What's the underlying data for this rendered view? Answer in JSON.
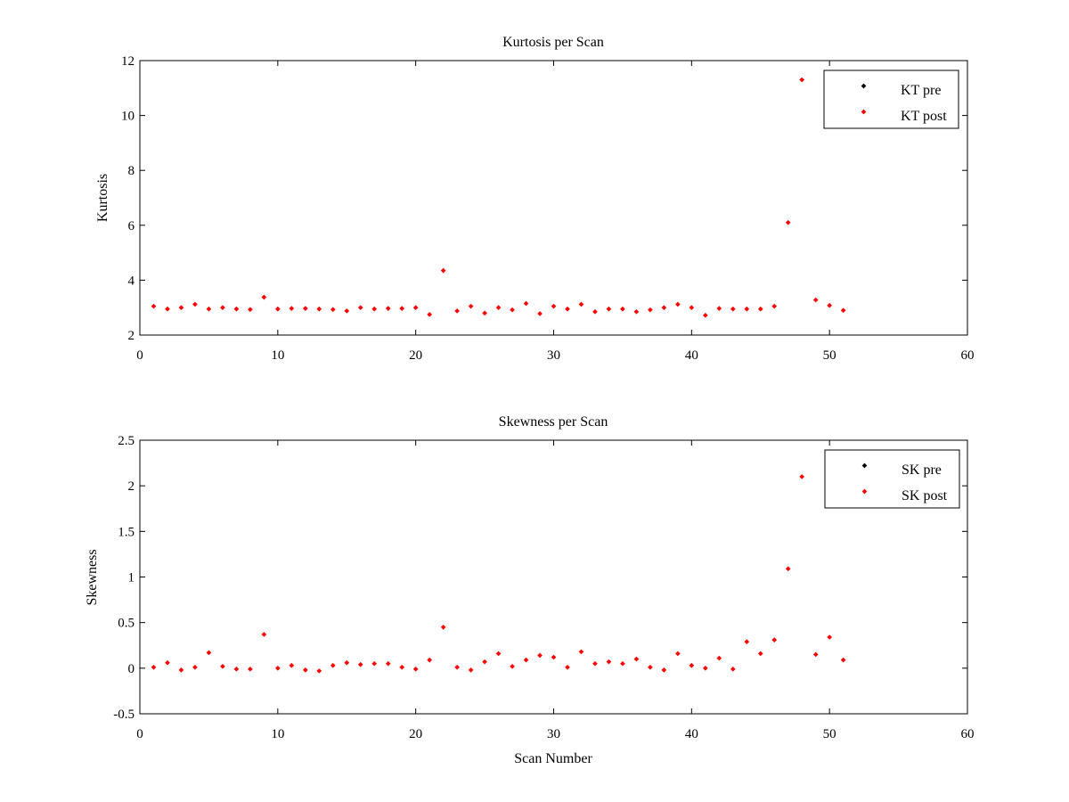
{
  "chart_data": [
    {
      "type": "scatter",
      "title": "Kurtosis per Scan",
      "xlabel": "",
      "ylabel": "Kurtosis",
      "xlim": [
        0,
        60
      ],
      "ylim": [
        2,
        12
      ],
      "xticks": [
        0,
        10,
        20,
        30,
        40,
        50,
        60
      ],
      "yticks": [
        2,
        4,
        6,
        8,
        10,
        12
      ],
      "grid": false,
      "legend_position": "top-right",
      "series": [
        {
          "name": "KT pre",
          "color": "#000000",
          "x": [],
          "y": []
        },
        {
          "name": "KT post",
          "color": "#ff0000",
          "x": [
            1,
            2,
            3,
            4,
            5,
            6,
            7,
            8,
            9,
            10,
            11,
            12,
            13,
            14,
            15,
            16,
            17,
            18,
            19,
            20,
            21,
            22,
            23,
            24,
            25,
            26,
            27,
            28,
            29,
            30,
            31,
            32,
            33,
            34,
            35,
            36,
            37,
            38,
            39,
            40,
            41,
            42,
            43,
            44,
            45,
            46,
            47,
            48,
            49,
            50,
            51
          ],
          "y": [
            3.05,
            2.95,
            3.0,
            3.12,
            2.95,
            3.0,
            2.95,
            2.93,
            3.38,
            2.95,
            2.97,
            2.97,
            2.95,
            2.93,
            2.88,
            3.0,
            2.95,
            2.97,
            2.97,
            3.0,
            2.75,
            4.35,
            2.88,
            3.05,
            2.8,
            3.0,
            2.92,
            3.15,
            2.78,
            3.05,
            2.95,
            3.12,
            2.85,
            2.95,
            2.95,
            2.85,
            2.92,
            3.0,
            3.12,
            3.0,
            2.72,
            2.97,
            2.95,
            2.95,
            2.95,
            3.05,
            6.1,
            11.3,
            3.28,
            3.08,
            2.9
          ]
        }
      ]
    },
    {
      "type": "scatter",
      "title": "Skewness per Scan",
      "xlabel": "Scan Number",
      "ylabel": "Skewness",
      "xlim": [
        0,
        60
      ],
      "ylim": [
        -0.5,
        2.5
      ],
      "xticks": [
        0,
        10,
        20,
        30,
        40,
        50,
        60
      ],
      "yticks": [
        -0.5,
        0,
        0.5,
        1,
        1.5,
        2,
        2.5
      ],
      "grid": false,
      "legend_position": "top-right",
      "series": [
        {
          "name": "SK pre",
          "color": "#000000",
          "x": [],
          "y": []
        },
        {
          "name": "SK post",
          "color": "#ff0000",
          "x": [
            1,
            2,
            3,
            4,
            5,
            6,
            7,
            8,
            9,
            10,
            11,
            12,
            13,
            14,
            15,
            16,
            17,
            18,
            19,
            20,
            21,
            22,
            23,
            24,
            25,
            26,
            27,
            28,
            29,
            30,
            31,
            32,
            33,
            34,
            35,
            36,
            37,
            38,
            39,
            40,
            41,
            42,
            43,
            44,
            45,
            46,
            47,
            48,
            49,
            50,
            51
          ],
          "y": [
            0.01,
            0.06,
            -0.02,
            0.01,
            0.17,
            0.02,
            -0.01,
            -0.01,
            0.37,
            0.0,
            0.03,
            -0.02,
            -0.03,
            0.03,
            0.06,
            0.04,
            0.05,
            0.05,
            0.01,
            -0.01,
            0.09,
            0.45,
            0.01,
            -0.02,
            0.07,
            0.16,
            0.02,
            0.09,
            0.14,
            0.12,
            0.01,
            0.18,
            0.05,
            0.07,
            0.05,
            0.1,
            0.01,
            -0.02,
            0.16,
            0.03,
            0.0,
            0.11,
            -0.01,
            0.29,
            0.16,
            0.31,
            1.09,
            2.1,
            0.15,
            0.34,
            0.09
          ]
        }
      ]
    }
  ]
}
